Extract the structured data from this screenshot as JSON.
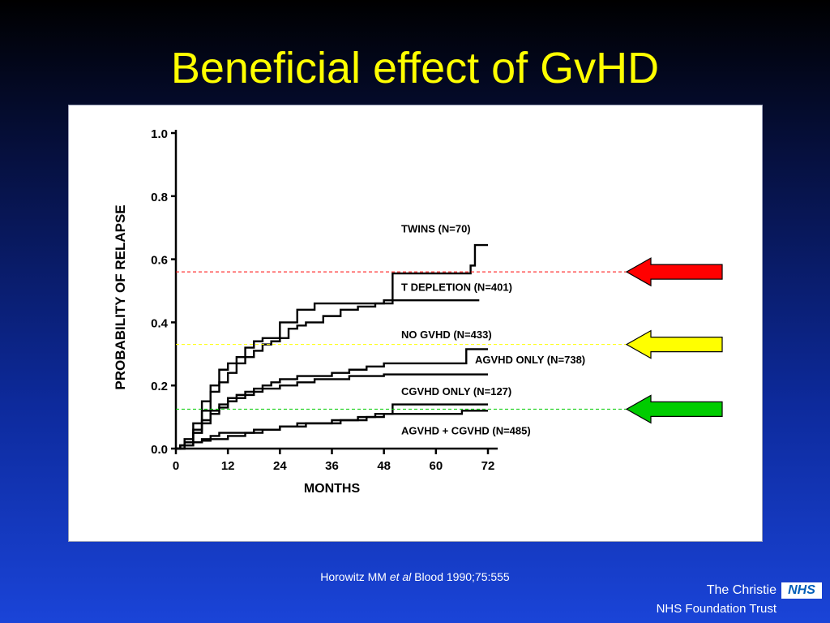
{
  "slide": {
    "title": "Beneficial effect of GvHD",
    "citation_prefix": "Horowitz MM ",
    "citation_italic": "et al",
    "citation_suffix": " Blood 1990;75:555",
    "org_name": "The Christie",
    "nhs_logo": "NHS",
    "trust_name": "NHS Foundation Trust"
  },
  "chart_data": {
    "type": "line",
    "xlabel": "MONTHS",
    "ylabel": "PROBABILITY OF RELAPSE",
    "xlim": [
      0,
      72
    ],
    "ylim": [
      0,
      1.0
    ],
    "xticks": [
      0,
      12,
      24,
      36,
      48,
      60,
      72
    ],
    "xtick_labels": [
      "0",
      "12",
      "24",
      "36",
      "48",
      "60",
      "72"
    ],
    "yticks": [
      0,
      0.2,
      0.4,
      0.6,
      0.8,
      1.0
    ],
    "ytick_labels": [
      "0.0",
      "0.2",
      "0.4",
      "0.6",
      "0.8",
      "1.0"
    ],
    "series": [
      {
        "name": "TWINS (N=70)",
        "label_at": [
          52,
          0.685
        ],
        "x": [
          0,
          1,
          2,
          4,
          6,
          8,
          10,
          12,
          14,
          16,
          18,
          20,
          24,
          28,
          32,
          36,
          40,
          44,
          48,
          50,
          56,
          62,
          68,
          69,
          72
        ],
        "y": [
          0,
          0.01,
          0.03,
          0.08,
          0.15,
          0.2,
          0.25,
          0.27,
          0.29,
          0.32,
          0.34,
          0.35,
          0.4,
          0.44,
          0.46,
          0.46,
          0.46,
          0.46,
          0.47,
          0.555,
          0.555,
          0.555,
          0.58,
          0.645,
          0.645
        ]
      },
      {
        "name": "T DEPLETION (N=401)",
        "label_at": [
          52,
          0.5
        ],
        "x": [
          0,
          1,
          2,
          4,
          6,
          8,
          10,
          12,
          14,
          16,
          18,
          20,
          22,
          24,
          26,
          28,
          30,
          34,
          38,
          42,
          46,
          50,
          56,
          62,
          67,
          70
        ],
        "y": [
          0,
          0.01,
          0.02,
          0.06,
          0.12,
          0.18,
          0.21,
          0.24,
          0.27,
          0.29,
          0.31,
          0.33,
          0.34,
          0.35,
          0.38,
          0.39,
          0.4,
          0.42,
          0.44,
          0.45,
          0.46,
          0.47,
          0.47,
          0.47,
          0.47,
          0.47
        ]
      },
      {
        "name": "NO GVHD (N=433)",
        "label_at": [
          52,
          0.35
        ],
        "x": [
          0,
          1,
          2,
          4,
          6,
          8,
          10,
          12,
          14,
          16,
          18,
          20,
          22,
          24,
          28,
          32,
          36,
          40,
          44,
          48,
          56,
          62,
          66,
          67,
          72
        ],
        "y": [
          0,
          0.01,
          0.02,
          0.05,
          0.09,
          0.12,
          0.14,
          0.16,
          0.17,
          0.18,
          0.19,
          0.2,
          0.21,
          0.22,
          0.23,
          0.23,
          0.24,
          0.25,
          0.26,
          0.27,
          0.27,
          0.27,
          0.27,
          0.315,
          0.315
        ]
      },
      {
        "name": "AGVHD ONLY (N=738)",
        "label_at": [
          69,
          0.27
        ],
        "x": [
          0,
          1,
          2,
          4,
          6,
          8,
          10,
          12,
          14,
          16,
          18,
          20,
          24,
          28,
          32,
          36,
          40,
          44,
          48,
          56,
          62,
          72
        ],
        "y": [
          0,
          0.01,
          0.02,
          0.05,
          0.08,
          0.11,
          0.13,
          0.15,
          0.16,
          0.17,
          0.18,
          0.19,
          0.2,
          0.21,
          0.22,
          0.22,
          0.23,
          0.23,
          0.235,
          0.235,
          0.235,
          0.235
        ]
      },
      {
        "name": "CGVHD ONLY (N=127)",
        "label_at": [
          52,
          0.17
        ],
        "x": [
          0,
          2,
          4,
          6,
          8,
          10,
          14,
          18,
          24,
          28,
          32,
          38,
          44,
          46,
          50,
          56,
          62,
          66,
          72
        ],
        "y": [
          0,
          0.01,
          0.02,
          0.03,
          0.04,
          0.05,
          0.05,
          0.06,
          0.07,
          0.08,
          0.08,
          0.09,
          0.1,
          0.11,
          0.14,
          0.14,
          0.14,
          0.14,
          0.14
        ]
      },
      {
        "name": "AGVHD + CGVHD (N=485)",
        "label_at": [
          52,
          0.045
        ],
        "x": [
          0,
          2,
          4,
          6,
          8,
          12,
          16,
          20,
          24,
          30,
          36,
          42,
          48,
          54,
          60,
          64,
          66,
          72
        ],
        "y": [
          0,
          0.01,
          0.02,
          0.025,
          0.03,
          0.04,
          0.05,
          0.06,
          0.07,
          0.08,
          0.09,
          0.1,
          0.11,
          0.11,
          0.11,
          0.11,
          0.12,
          0.12
        ]
      }
    ],
    "reference_lines": [
      {
        "y": 0.56,
        "color": "#ff0000",
        "arrow_color": "#ff0000"
      },
      {
        "y": 0.33,
        "color": "#ffff00",
        "arrow_color": "#ffff00"
      },
      {
        "y": 0.125,
        "color": "#00cc00",
        "arrow_color": "#00cc00"
      }
    ],
    "colors": {
      "title": "#ffff00",
      "lines": "#000000"
    }
  }
}
